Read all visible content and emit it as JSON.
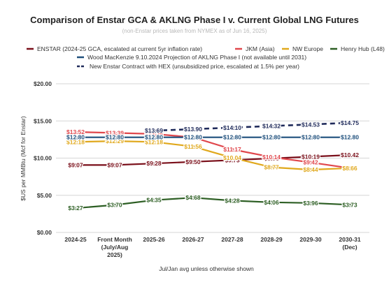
{
  "chart_data": {
    "type": "line",
    "title": "Comparison of Enstar GCA & AKLNG Phase I v. Current Global LNG Futures",
    "subtitle": "(non-Enstar prices taken from NYMEX as of Jun 16, 2025)",
    "xlabel": "Jul/Jan avg unless otherwise shown",
    "ylabel": "$US per MMBtu (Mcf for Enstar)",
    "ylim": [
      0,
      20
    ],
    "yticks": [
      "$0.00",
      "$5.00",
      "$10.00",
      "$15.00",
      "$20.00"
    ],
    "grid": true,
    "legend_position": "top",
    "categories": [
      [
        "2024-25"
      ],
      [
        "Front Month",
        "(July/Aug",
        "2025)"
      ],
      [
        "2025-26"
      ],
      [
        "2026-27"
      ],
      [
        "2027-28"
      ],
      [
        "2028-29"
      ],
      [
        "2029-30"
      ],
      [
        "2030-31",
        "(Dec)"
      ]
    ],
    "series": [
      {
        "name": "ENSTAR (2024-25 GCA, escalated at current 5yr inflation rate)",
        "color": "#7a0f1a",
        "dashed": false,
        "values": [
          9.07,
          9.07,
          9.28,
          9.5,
          9.73,
          9.96,
          10.19,
          10.42
        ],
        "labels": [
          "$9.07",
          "$9.07",
          "$9.28",
          "$9.50",
          "$9.73",
          "$9.96",
          "$10.19",
          "$10.42"
        ]
      },
      {
        "name": "JKM (Asia)",
        "color": "#e0474c",
        "dashed": false,
        "values": [
          13.52,
          13.39,
          13.25,
          12.8,
          11.17,
          10.14,
          9.42,
          8.66
        ],
        "labels": [
          "$13.52",
          "$13.39",
          "$13.25",
          "$12.80",
          "$11.17",
          "$10.14",
          "$9.42",
          "$8.66"
        ]
      },
      {
        "name": "NW Europe",
        "color": "#e0a81c",
        "dashed": false,
        "values": [
          12.18,
          12.29,
          12.18,
          11.56,
          10.04,
          8.77,
          8.44,
          8.66
        ],
        "labels": [
          "$12.18",
          "$12.29",
          "$12.18",
          "$11.56",
          "$10.04",
          "$8.77",
          "$8.44",
          "$8.66"
        ]
      },
      {
        "name": "Henry Hub (L48)",
        "color": "#2c5e23",
        "dashed": false,
        "values": [
          3.27,
          3.7,
          4.35,
          4.68,
          4.28,
          4.06,
          3.96,
          3.73
        ],
        "labels": [
          "$3.27",
          "$3.70",
          "$4.35",
          "$4.68",
          "$4.28",
          "$4.06",
          "$3.96",
          "$3.73"
        ]
      },
      {
        "name": "Wood MacKenzie 9.10.2024 Projection of AKLNG Phase I (not available until 2031)",
        "color": "#1e4f7c",
        "dashed": false,
        "values": [
          12.8,
          12.8,
          12.8,
          12.8,
          12.8,
          12.8,
          12.8,
          12.8
        ],
        "labels": [
          "$12.80",
          "$12.80",
          "$12.80",
          "$12.80",
          "$12.80",
          "$12.80",
          "$12.80",
          "$12.80"
        ]
      },
      {
        "name": "New Enstar Contract with HEX (unsubsidized price, escalated at 1.5% per year)",
        "color": "#1f2a5a",
        "dashed": true,
        "values": [
          null,
          null,
          13.69,
          13.9,
          14.1,
          14.32,
          14.53,
          14.75
        ],
        "labels": [
          null,
          null,
          "$13.69",
          "$13.90",
          "$14.10",
          "$14.32",
          "$14.53",
          "$14.75"
        ]
      }
    ]
  }
}
